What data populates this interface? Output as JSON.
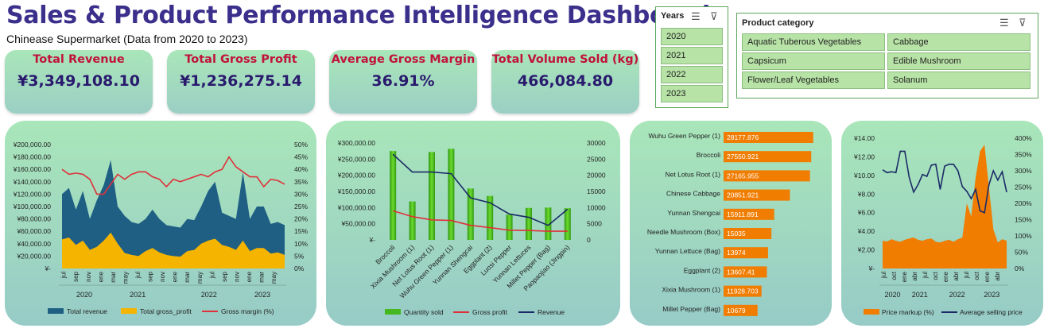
{
  "header": {
    "title": "Sales & Product Performance Intelligence Dashboard",
    "subtitle": "Chinease Supermarket (Data from 2020 to 2023)"
  },
  "kpis": [
    {
      "label": "Total Revenue",
      "value": "¥3,349,108.10"
    },
    {
      "label": "Total Gross Profit",
      "value": "¥1,236,275.14"
    },
    {
      "label": "Average Gross Margin",
      "value": "36.91%"
    },
    {
      "label": "Total Volume Sold (kg)",
      "value": "466,084.80"
    }
  ],
  "years_slicer": {
    "title": "Years",
    "items": [
      "2020",
      "2021",
      "2022",
      "2023"
    ]
  },
  "category_slicer": {
    "title": "Product category",
    "items": [
      "Aquatic Tuberous Vegetables",
      "Cabbage",
      "Capsicum",
      "Edible Mushroom",
      "Flower/Leaf Vegetables",
      "Solanum"
    ]
  },
  "colors": {
    "title": "#3b2f8c",
    "kpi_label": "#c0123c",
    "kpi_value": "#2a1a6e",
    "revenue_area": "#1f5f84",
    "profit_area": "#f5b400",
    "margin_line": "#e0303a",
    "bar_green": "#45b81f",
    "bar_orange": "#f07c00",
    "navy_line": "#1b2a66"
  },
  "chart_data": [
    {
      "type": "area",
      "ylabel_left_ticks": [
        "¥-",
        "¥20,000.00",
        "¥40,000.00",
        "¥60,000.00",
        "¥80,000.00",
        "¥100,000.00",
        "¥120,000.00",
        "¥140,000.00",
        "¥160,000.00",
        "¥180,000.00",
        "¥200,000.00"
      ],
      "ylabel_right_ticks": [
        "0%",
        "5%",
        "10%",
        "15%",
        "20%",
        "25%",
        "30%",
        "35%",
        "40%",
        "45%",
        "50%"
      ],
      "ylim": [
        0,
        200000
      ],
      "y2lim": [
        0,
        0.5
      ],
      "month_labels": [
        "jul",
        "sep",
        "nov",
        "ene",
        "mar",
        "may",
        "jul",
        "sep",
        "nov",
        "ene",
        "mar",
        "may",
        "jul",
        "sep",
        "nov",
        "ene",
        "mar",
        "may"
      ],
      "year_labels": [
        "2020",
        "2021",
        "2022",
        "2023"
      ],
      "series": [
        {
          "name": "Total revenue",
          "values": [
            120000,
            130000,
            95000,
            125000,
            80000,
            110000,
            135000,
            175000,
            100000,
            85000,
            75000,
            72000,
            80000,
            95000,
            80000,
            70000,
            68000,
            66000,
            80000,
            78000,
            100000,
            125000,
            140000,
            90000,
            85000,
            80000,
            155000,
            80000,
            100000,
            100000,
            72000,
            75000,
            70000
          ]
        },
        {
          "name": "Total gross_profit",
          "values": [
            47000,
            50000,
            38000,
            45000,
            30000,
            35000,
            45000,
            58000,
            40000,
            25000,
            22000,
            20000,
            28000,
            33000,
            26000,
            22000,
            20000,
            19000,
            28000,
            30000,
            40000,
            45000,
            48000,
            38000,
            35000,
            30000,
            45000,
            28000,
            33000,
            33000,
            24000,
            26000,
            22000
          ]
        },
        {
          "name": "Gross margin (%)",
          "values": [
            0.4,
            0.38,
            0.385,
            0.38,
            0.36,
            0.3,
            0.3,
            0.34,
            0.38,
            0.36,
            0.38,
            0.39,
            0.39,
            0.37,
            0.36,
            0.33,
            0.36,
            0.35,
            0.36,
            0.37,
            0.38,
            0.37,
            0.39,
            0.4,
            0.45,
            0.41,
            0.39,
            0.37,
            0.37,
            0.33,
            0.36,
            0.355,
            0.34
          ]
        }
      ]
    },
    {
      "type": "bar",
      "categories": [
        "Broccoli",
        "Xixia Mushroom (1)",
        "Net Lotus Root (1)",
        "Wuhu Green Pepper (1)",
        "Yunnan Shengcai",
        "Eggplant (2)",
        "Luosi Pepper",
        "Yunnan Lettuces",
        "Millet Pepper (Bag)",
        "Paopaojiao (Jingpin)"
      ],
      "ylabel_left_ticks": [
        "¥-",
        "¥50,000.00",
        "¥100,000.00",
        "¥150,000.00",
        "¥200,000.00",
        "¥250,000.00",
        "¥300,000.00"
      ],
      "ylabel_right_ticks": [
        "0",
        "5000",
        "10000",
        "15000",
        "20000",
        "25000",
        "30000"
      ],
      "ylim": [
        0,
        300000
      ],
      "y2lim": [
        0,
        30000
      ],
      "series": [
        {
          "name": "Quantity sold",
          "values": [
            27500,
            11900,
            27200,
            28200,
            15900,
            13600,
            7800,
            9900,
            10000,
            9800
          ]
        },
        {
          "name": "Gross profit",
          "values": [
            90000,
            72000,
            62000,
            60000,
            45000,
            38000,
            30000,
            29000,
            27000,
            27000
          ]
        },
        {
          "name": "Revenue",
          "values": [
            265000,
            210000,
            210000,
            205000,
            130000,
            115000,
            80000,
            70000,
            45000,
            95000
          ]
        }
      ]
    },
    {
      "type": "bar",
      "orientation": "horizontal",
      "categories": [
        "Wuhu Green Pepper (1)",
        "Broccoli",
        "Net Lotus Root (1)",
        "Chinese Cabbage",
        "Yunnan Shengcai",
        "Needle Mushroom (Box)",
        "Yunnan Lettuce (Bag)",
        "Eggplant (2)",
        "Xixia Mushroom (1)",
        "Millet Pepper (Bag)"
      ],
      "values": [
        28177.876,
        27550.921,
        27165.955,
        20851.921,
        15911.891,
        15035,
        13974,
        13607.41,
        11928.703,
        10679
      ],
      "value_labels": [
        "28177.876",
        "27550.921",
        "27165.955",
        "20851.921",
        "15911.891",
        "15035",
        "13974",
        "13607.41",
        "11928.703",
        "10679"
      ]
    },
    {
      "type": "area",
      "ylabel_left_ticks": [
        "¥-",
        "¥2.00",
        "¥4.00",
        "¥6.00",
        "¥8.00",
        "¥10.00",
        "¥12.00",
        "¥14.00"
      ],
      "ylabel_right_ticks": [
        "0%",
        "50%",
        "100%",
        "150%",
        "200%",
        "250%",
        "300%",
        "350%",
        "400%"
      ],
      "ylim": [
        0,
        14
      ],
      "y2lim": [
        0,
        4
      ],
      "month_labels": [
        "jul",
        "oct",
        "ene",
        "abr",
        "jul",
        "oct",
        "ene",
        "abr",
        "jul",
        "oct",
        "ene",
        "abr"
      ],
      "year_labels": [
        "2020",
        "2021",
        "2022",
        "2023"
      ],
      "series": [
        {
          "name": "Price markup (%)",
          "values": [
            0.85,
            0.83,
            0.9,
            0.85,
            0.82,
            0.88,
            0.92,
            0.95,
            0.88,
            0.85,
            0.9,
            0.92,
            0.82,
            0.8,
            0.85,
            0.88,
            0.82,
            0.9,
            0.95,
            2.0,
            1.6,
            2.8,
            3.6,
            3.8,
            2.5,
            1.2,
            0.8,
            0.9,
            0.85
          ]
        },
        {
          "name": "Average selling price",
          "values": [
            10.6,
            10.3,
            10.4,
            10.3,
            12.6,
            12.6,
            9.8,
            8.2,
            9.0,
            10.1,
            9.9,
            11.1,
            11.2,
            8.5,
            11.0,
            11.2,
            11.2,
            10.5,
            8.8,
            8.3,
            7.5,
            8.5,
            6.2,
            6.0,
            9.0,
            10.5,
            9.5,
            10.4,
            8.2
          ]
        }
      ]
    }
  ]
}
